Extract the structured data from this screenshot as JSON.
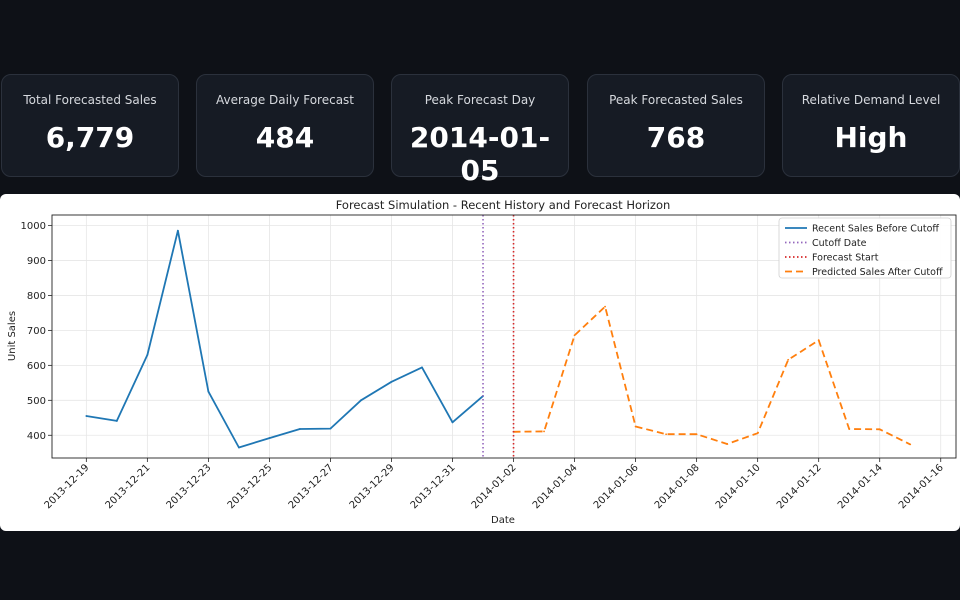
{
  "kpis": [
    {
      "label": "Total Forecasted Sales",
      "value": "6,779"
    },
    {
      "label": "Average Daily Forecast",
      "value": "484"
    },
    {
      "label": "Peak Forecast Day",
      "value": "2014-01-05"
    },
    {
      "label": "Peak Forecasted Sales",
      "value": "768"
    },
    {
      "label": "Relative Demand Level",
      "value": "High"
    }
  ],
  "colors": {
    "background": "#0e1117",
    "card": "#161b24",
    "history": "#1f77b4",
    "cutoff": "#9467bd",
    "forecast_start": "#d62728",
    "prediction": "#ff7f0e"
  },
  "chart_data": {
    "type": "line",
    "title": "Forecast Simulation - Recent History and Forecast Horizon",
    "xlabel": "Date",
    "ylabel": "Unit Sales",
    "ylim": [
      335,
      1030
    ],
    "xlim": [
      "2013-12-17T21:00",
      "2014-01-16T12:00"
    ],
    "yticks": [
      400,
      500,
      600,
      700,
      800,
      900,
      1000
    ],
    "xticks": [
      "2013-12-19",
      "2013-12-21",
      "2013-12-23",
      "2013-12-25",
      "2013-12-27",
      "2013-12-29",
      "2013-12-31",
      "2014-01-02",
      "2014-01-04",
      "2014-01-06",
      "2014-01-08",
      "2014-01-10",
      "2014-01-12",
      "2014-01-14",
      "2014-01-16"
    ],
    "grid": true,
    "legend_position": "top-right",
    "series": [
      {
        "name": "Recent Sales Before Cutoff",
        "style": "solid",
        "x": [
          "2013-12-19",
          "2013-12-20",
          "2013-12-21",
          "2013-12-22",
          "2013-12-23",
          "2013-12-24",
          "2013-12-25",
          "2013-12-26",
          "2013-12-27",
          "2013-12-28",
          "2013-12-29",
          "2013-12-30",
          "2013-12-31",
          "2014-01-01"
        ],
        "values": [
          455,
          441,
          630,
          985,
          525,
          365,
          392,
          418,
          419,
          500,
          553,
          594,
          437,
          512
        ]
      },
      {
        "name": "Predicted Sales After Cutoff",
        "style": "dashed",
        "x": [
          "2014-01-02",
          "2014-01-03",
          "2014-01-04",
          "2014-01-05",
          "2014-01-06",
          "2014-01-07",
          "2014-01-08",
          "2014-01-09",
          "2014-01-10",
          "2014-01-11",
          "2014-01-12",
          "2014-01-13",
          "2014-01-14",
          "2014-01-15"
        ],
        "values": [
          410,
          411,
          686,
          768,
          425,
          403,
          403,
          375,
          406,
          616,
          672,
          418,
          417,
          374
        ]
      }
    ],
    "vlines": [
      {
        "name": "Cutoff Date",
        "x": "2014-01-01",
        "style": "dotted"
      },
      {
        "name": "Forecast Start",
        "x": "2014-01-02",
        "style": "dotted"
      }
    ]
  }
}
